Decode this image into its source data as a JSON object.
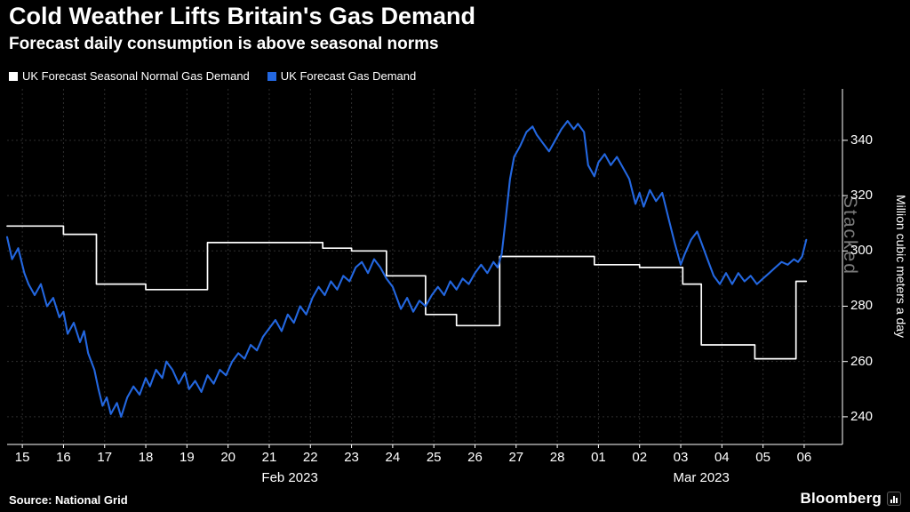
{
  "title": "Cold Weather Lifts Britain's Gas Demand",
  "subtitle": "Forecast daily consumption is above seasonal norms",
  "legend": [
    {
      "label": "UK Forecast Seasonal Normal Gas Demand",
      "color": "#ffffff"
    },
    {
      "label": "UK Forecast Gas Demand",
      "color": "#2367e0"
    }
  ],
  "y_axis": {
    "label": "Million cubic meters a day",
    "ticks": [
      240,
      260,
      280,
      300,
      320,
      340
    ]
  },
  "x_axis": {
    "ticks": [
      "15",
      "16",
      "17",
      "18",
      "19",
      "20",
      "21",
      "22",
      "23",
      "24",
      "25",
      "26",
      "27",
      "28",
      "01",
      "02",
      "03",
      "04",
      "05",
      "06"
    ],
    "months": [
      {
        "label": "Feb 2023",
        "center_index": 6.5
      },
      {
        "label": "Mar 2023",
        "center_index": 16.5
      }
    ]
  },
  "watermark": "Stacked",
  "source": "Source: National Grid",
  "brand": "Bloomberg",
  "colors": {
    "background": "#000000",
    "grid": "#2e2e2e",
    "axis": "#ffffff",
    "watermark": "#7a7a7a"
  },
  "chart_data": {
    "type": "line",
    "title": "Cold Weather Lifts Britain's Gas Demand",
    "subtitle": "Forecast daily consumption is above seasonal norms",
    "ylabel": "Million cubic meters a day",
    "x_description": "days, Feb 15 2023 = 0 through Mar 06 2023 = 19",
    "xlim": [
      -0.37,
      19.93
    ],
    "ylim": [
      230,
      358.6
    ],
    "y_ticks": [
      240,
      260,
      280,
      300,
      320,
      340
    ],
    "legend_position": "top-left",
    "grid": true,
    "series": [
      {
        "name": "UK Forecast Seasonal Normal Gas Demand",
        "color": "#ffffff",
        "points": [
          [
            -0.37,
            309
          ],
          [
            1.0,
            309
          ],
          [
            1.0,
            306
          ],
          [
            1.8,
            306
          ],
          [
            1.8,
            288
          ],
          [
            3.0,
            288
          ],
          [
            3.0,
            286
          ],
          [
            4.5,
            286
          ],
          [
            4.5,
            303
          ],
          [
            7.3,
            303
          ],
          [
            7.3,
            301
          ],
          [
            8.0,
            301
          ],
          [
            8.0,
            300
          ],
          [
            8.85,
            300
          ],
          [
            8.85,
            291
          ],
          [
            9.8,
            291
          ],
          [
            9.8,
            277
          ],
          [
            10.55,
            277
          ],
          [
            10.55,
            273
          ],
          [
            11.6,
            273
          ],
          [
            11.6,
            298
          ],
          [
            13.9,
            298
          ],
          [
            13.9,
            295
          ],
          [
            15.0,
            295
          ],
          [
            15.0,
            294
          ],
          [
            16.05,
            294
          ],
          [
            16.05,
            288
          ],
          [
            16.5,
            288
          ],
          [
            16.5,
            266
          ],
          [
            17.8,
            266
          ],
          [
            17.8,
            261
          ],
          [
            18.8,
            261
          ],
          [
            18.8,
            289
          ],
          [
            19.05,
            289
          ]
        ]
      },
      {
        "name": "UK Forecast Gas Demand",
        "color": "#2367e0",
        "points": [
          [
            -0.37,
            305
          ],
          [
            -0.25,
            297
          ],
          [
            -0.1,
            301
          ],
          [
            0.05,
            292
          ],
          [
            0.15,
            288
          ],
          [
            0.3,
            284
          ],
          [
            0.45,
            288
          ],
          [
            0.6,
            280
          ],
          [
            0.75,
            283
          ],
          [
            0.9,
            276
          ],
          [
            1.0,
            278
          ],
          [
            1.1,
            270
          ],
          [
            1.25,
            274
          ],
          [
            1.4,
            267
          ],
          [
            1.5,
            271
          ],
          [
            1.6,
            263
          ],
          [
            1.75,
            257
          ],
          [
            1.85,
            250
          ],
          [
            1.95,
            244
          ],
          [
            2.05,
            247
          ],
          [
            2.15,
            241
          ],
          [
            2.3,
            245
          ],
          [
            2.4,
            240
          ],
          [
            2.55,
            247
          ],
          [
            2.7,
            251
          ],
          [
            2.85,
            248
          ],
          [
            3.0,
            254
          ],
          [
            3.1,
            251
          ],
          [
            3.25,
            257
          ],
          [
            3.4,
            254
          ],
          [
            3.5,
            260
          ],
          [
            3.65,
            257
          ],
          [
            3.8,
            252
          ],
          [
            3.95,
            256
          ],
          [
            4.05,
            250
          ],
          [
            4.2,
            253
          ],
          [
            4.35,
            249
          ],
          [
            4.5,
            255
          ],
          [
            4.65,
            252
          ],
          [
            4.8,
            257
          ],
          [
            4.95,
            255
          ],
          [
            5.1,
            260
          ],
          [
            5.25,
            263
          ],
          [
            5.4,
            261
          ],
          [
            5.55,
            266
          ],
          [
            5.7,
            264
          ],
          [
            5.85,
            269
          ],
          [
            6.0,
            272
          ],
          [
            6.15,
            275
          ],
          [
            6.3,
            271
          ],
          [
            6.45,
            277
          ],
          [
            6.6,
            274
          ],
          [
            6.75,
            280
          ],
          [
            6.9,
            277
          ],
          [
            7.05,
            283
          ],
          [
            7.2,
            287
          ],
          [
            7.35,
            284
          ],
          [
            7.5,
            289
          ],
          [
            7.65,
            286
          ],
          [
            7.8,
            291
          ],
          [
            7.95,
            289
          ],
          [
            8.1,
            294
          ],
          [
            8.25,
            296
          ],
          [
            8.4,
            292
          ],
          [
            8.55,
            297
          ],
          [
            8.7,
            294
          ],
          [
            8.85,
            290
          ],
          [
            9.0,
            287
          ],
          [
            9.1,
            283
          ],
          [
            9.2,
            279
          ],
          [
            9.35,
            283
          ],
          [
            9.5,
            278
          ],
          [
            9.65,
            282
          ],
          [
            9.8,
            280
          ],
          [
            9.95,
            284
          ],
          [
            10.1,
            287
          ],
          [
            10.25,
            284
          ],
          [
            10.4,
            289
          ],
          [
            10.55,
            286
          ],
          [
            10.7,
            290
          ],
          [
            10.85,
            288
          ],
          [
            11.0,
            292
          ],
          [
            11.15,
            295
          ],
          [
            11.3,
            292
          ],
          [
            11.45,
            296
          ],
          [
            11.55,
            294
          ],
          [
            11.65,
            299
          ],
          [
            11.75,
            312
          ],
          [
            11.85,
            326
          ],
          [
            11.95,
            334
          ],
          [
            12.1,
            338
          ],
          [
            12.25,
            343
          ],
          [
            12.4,
            345
          ],
          [
            12.5,
            342
          ],
          [
            12.65,
            339
          ],
          [
            12.8,
            336
          ],
          [
            12.95,
            340
          ],
          [
            13.1,
            344
          ],
          [
            13.25,
            347
          ],
          [
            13.4,
            344
          ],
          [
            13.5,
            346
          ],
          [
            13.65,
            343
          ],
          [
            13.75,
            331
          ],
          [
            13.9,
            327
          ],
          [
            14.0,
            332
          ],
          [
            14.15,
            335
          ],
          [
            14.3,
            331
          ],
          [
            14.45,
            334
          ],
          [
            14.6,
            330
          ],
          [
            14.75,
            326
          ],
          [
            14.9,
            317
          ],
          [
            15.0,
            321
          ],
          [
            15.1,
            316
          ],
          [
            15.25,
            322
          ],
          [
            15.4,
            318
          ],
          [
            15.55,
            321
          ],
          [
            15.7,
            312
          ],
          [
            15.85,
            303
          ],
          [
            16.0,
            295
          ],
          [
            16.1,
            299
          ],
          [
            16.25,
            304
          ],
          [
            16.4,
            307
          ],
          [
            16.5,
            303
          ],
          [
            16.65,
            297
          ],
          [
            16.8,
            291
          ],
          [
            16.95,
            288
          ],
          [
            17.1,
            292
          ],
          [
            17.25,
            288
          ],
          [
            17.4,
            292
          ],
          [
            17.55,
            289
          ],
          [
            17.7,
            291
          ],
          [
            17.85,
            288
          ],
          [
            18.0,
            290
          ],
          [
            18.15,
            292
          ],
          [
            18.3,
            294
          ],
          [
            18.45,
            296
          ],
          [
            18.6,
            295
          ],
          [
            18.75,
            297
          ],
          [
            18.85,
            296
          ],
          [
            18.95,
            298
          ],
          [
            19.05,
            304
          ]
        ]
      }
    ]
  }
}
